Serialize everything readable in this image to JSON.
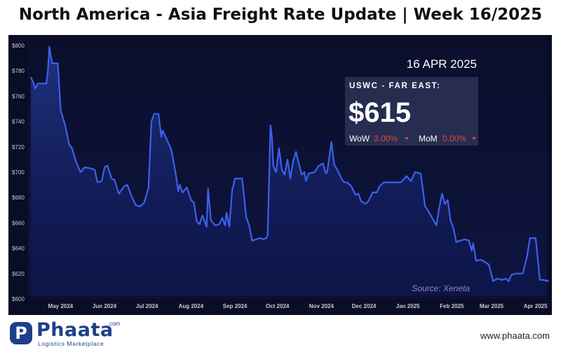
{
  "header": {
    "title": "North America - Asia Freight Rate Update | Week 16/2025"
  },
  "callout": {
    "date": "16 APR 2025",
    "route": "USWC - FAR EAST:",
    "price": "$615",
    "wow_label": "WoW",
    "wow_value": "3.00%",
    "mom_label": "MoM",
    "mom_value": "0.00%"
  },
  "source": "Source: Xeneta",
  "footer": {
    "logo_letter": "P",
    "logo_name": "Phaata",
    "logo_com": ".com",
    "logo_tagline": "Logistics Marketplace",
    "website": "www.phaata.com"
  },
  "colors": {
    "background": "#0a0d26",
    "line": "#3a62e8",
    "negative": "#e04848"
  },
  "chart_data": {
    "type": "line",
    "title": "",
    "xlabel": "",
    "ylabel": "",
    "ylim": [
      600,
      800
    ],
    "y_ticks": [
      "$600",
      "$620",
      "$640",
      "$660",
      "$680",
      "$700",
      "$720",
      "$740",
      "$760",
      "$780",
      "$800"
    ],
    "y_tick_values": [
      600,
      620,
      640,
      660,
      680,
      700,
      720,
      740,
      760,
      780,
      800
    ],
    "x_ticks": [
      {
        "date": "2024-05-01",
        "label": "May 2024"
      },
      {
        "date": "2024-06-01",
        "label": "Jun 2024"
      },
      {
        "date": "2024-07-01",
        "label": "Jul 2024"
      },
      {
        "date": "2024-08-01",
        "label": "Aug 2024"
      },
      {
        "date": "2024-09-01",
        "label": "Sep 2024"
      },
      {
        "date": "2024-10-01",
        "label": "Oct 2024"
      },
      {
        "date": "2024-11-01",
        "label": "Nov 2024"
      },
      {
        "date": "2024-12-01",
        "label": "Dec 2024"
      },
      {
        "date": "2025-01-01",
        "label": "Jan 2025"
      },
      {
        "date": "2025-02-01",
        "label": "Feb 2025"
      },
      {
        "date": "2025-03-01",
        "label": "Mar 2025"
      },
      {
        "date": "2025-04-01",
        "label": "Apr 2025"
      }
    ],
    "xlim": [
      "2024-04-16",
      "2025-04-16"
    ],
    "grid": false,
    "series": [
      {
        "name": "",
        "points": [
          [
            "2024-04-16",
            775
          ],
          [
            "2024-04-18",
            770
          ],
          [
            "2024-04-19",
            766
          ],
          [
            "2024-04-21",
            770
          ],
          [
            "2024-04-24",
            770
          ],
          [
            "2024-04-27",
            770
          ],
          [
            "2024-04-28",
            780
          ],
          [
            "2024-04-29",
            799
          ],
          [
            "2024-05-01",
            786
          ],
          [
            "2024-05-05",
            786
          ],
          [
            "2024-05-07",
            749
          ],
          [
            "2024-05-10",
            738
          ],
          [
            "2024-05-13",
            722
          ],
          [
            "2024-05-15",
            719
          ],
          [
            "2024-05-18",
            708
          ],
          [
            "2024-05-21",
            700
          ],
          [
            "2024-05-24",
            704
          ],
          [
            "2024-05-28",
            703
          ],
          [
            "2024-05-31",
            702
          ],
          [
            "2024-06-02",
            692
          ],
          [
            "2024-06-05",
            693
          ],
          [
            "2024-06-07",
            704
          ],
          [
            "2024-06-09",
            705
          ],
          [
            "2024-06-12",
            695
          ],
          [
            "2024-06-14",
            694
          ],
          [
            "2024-06-17",
            683
          ],
          [
            "2024-06-19",
            686
          ],
          [
            "2024-06-21",
            689
          ],
          [
            "2024-06-23",
            690
          ],
          [
            "2024-06-26",
            681
          ],
          [
            "2024-06-29",
            674
          ],
          [
            "2024-07-02",
            673
          ],
          [
            "2024-07-05",
            676
          ],
          [
            "2024-07-08",
            688
          ],
          [
            "2024-07-10",
            740
          ],
          [
            "2024-07-12",
            746
          ],
          [
            "2024-07-15",
            746
          ],
          [
            "2024-07-17",
            728
          ],
          [
            "2024-07-18",
            733
          ],
          [
            "2024-07-20",
            728
          ],
          [
            "2024-07-22",
            723
          ],
          [
            "2024-07-24",
            718
          ],
          [
            "2024-07-27",
            700
          ],
          [
            "2024-07-29",
            685
          ],
          [
            "2024-07-30",
            690
          ],
          [
            "2024-08-01",
            684
          ],
          [
            "2024-08-04",
            688
          ],
          [
            "2024-08-07",
            678
          ],
          [
            "2024-08-09",
            676
          ],
          [
            "2024-08-11",
            661
          ],
          [
            "2024-08-13",
            659
          ],
          [
            "2024-08-15",
            666
          ],
          [
            "2024-08-18",
            657
          ],
          [
            "2024-08-19",
            687
          ],
          [
            "2024-08-21",
            662
          ],
          [
            "2024-08-24",
            658
          ],
          [
            "2024-08-27",
            659
          ],
          [
            "2024-08-29",
            664
          ],
          [
            "2024-08-31",
            658
          ],
          [
            "2024-09-01",
            668
          ],
          [
            "2024-09-03",
            657
          ],
          [
            "2024-09-05",
            686
          ],
          [
            "2024-09-07",
            695
          ],
          [
            "2024-09-12",
            695
          ],
          [
            "2024-09-15",
            664
          ],
          [
            "2024-09-17",
            658
          ],
          [
            "2024-09-19",
            646
          ],
          [
            "2024-09-22",
            647
          ],
          [
            "2024-09-25",
            648
          ],
          [
            "2024-09-27",
            647
          ],
          [
            "2024-09-29",
            648
          ],
          [
            "2024-09-30",
            650
          ],
          [
            "2024-10-02",
            737
          ],
          [
            "2024-10-03",
            728
          ],
          [
            "2024-10-04",
            705
          ],
          [
            "2024-10-06",
            700
          ],
          [
            "2024-10-08",
            719
          ],
          [
            "2024-10-10",
            702
          ],
          [
            "2024-10-12",
            698
          ],
          [
            "2024-10-14",
            710
          ],
          [
            "2024-10-16",
            695
          ],
          [
            "2024-10-18",
            709
          ],
          [
            "2024-10-20",
            716
          ],
          [
            "2024-10-22",
            707
          ],
          [
            "2024-10-24",
            698
          ],
          [
            "2024-10-26",
            700
          ],
          [
            "2024-10-27",
            693
          ],
          [
            "2024-10-29",
            699
          ],
          [
            "2024-11-02",
            700
          ],
          [
            "2024-11-05",
            705
          ],
          [
            "2024-11-08",
            707
          ],
          [
            "2024-11-10",
            699
          ],
          [
            "2024-11-11",
            700
          ],
          [
            "2024-11-13",
            716
          ],
          [
            "2024-11-14",
            724
          ],
          [
            "2024-11-16",
            706
          ],
          [
            "2024-11-19",
            700
          ],
          [
            "2024-11-21",
            695
          ],
          [
            "2024-11-23",
            692
          ],
          [
            "2024-11-25",
            692
          ],
          [
            "2024-11-28",
            689
          ],
          [
            "2024-12-01",
            682
          ],
          [
            "2024-12-03",
            683
          ],
          [
            "2024-12-05",
            677
          ],
          [
            "2024-12-08",
            675
          ],
          [
            "2024-12-10",
            677
          ],
          [
            "2024-12-13",
            684
          ],
          [
            "2024-12-16",
            684
          ],
          [
            "2024-12-18",
            689
          ],
          [
            "2024-12-21",
            692
          ],
          [
            "2024-12-26",
            692
          ],
          [
            "2025-01-02",
            692
          ],
          [
            "2025-01-06",
            697
          ],
          [
            "2025-01-09",
            693
          ],
          [
            "2025-01-12",
            700
          ],
          [
            "2025-01-16",
            699
          ],
          [
            "2025-01-19",
            673
          ],
          [
            "2025-01-21",
            670
          ],
          [
            "2025-01-24",
            664
          ],
          [
            "2025-01-27",
            658
          ],
          [
            "2025-01-29",
            672
          ],
          [
            "2025-01-31",
            683
          ],
          [
            "2025-02-02",
            675
          ],
          [
            "2025-02-04",
            678
          ],
          [
            "2025-02-06",
            662
          ],
          [
            "2025-02-08",
            656
          ],
          [
            "2025-02-10",
            645
          ],
          [
            "2025-02-13",
            646
          ],
          [
            "2025-02-16",
            647
          ],
          [
            "2025-02-19",
            646
          ],
          [
            "2025-02-21",
            638
          ],
          [
            "2025-02-22",
            644
          ],
          [
            "2025-02-24",
            630
          ],
          [
            "2025-02-27",
            631
          ],
          [
            "2025-03-01",
            630
          ],
          [
            "2025-03-05",
            627
          ],
          [
            "2025-03-08",
            614
          ],
          [
            "2025-03-11",
            616
          ],
          [
            "2025-03-14",
            615
          ],
          [
            "2025-03-17",
            616
          ],
          [
            "2025-03-19",
            614
          ],
          [
            "2025-03-21",
            619
          ],
          [
            "2025-03-24",
            620
          ],
          [
            "2025-03-26",
            620
          ],
          [
            "2025-03-29",
            620
          ],
          [
            "2025-04-01",
            634
          ],
          [
            "2025-04-03",
            648
          ],
          [
            "2025-04-07",
            648
          ],
          [
            "2025-04-10",
            615
          ],
          [
            "2025-04-13",
            615
          ],
          [
            "2025-04-15",
            614
          ],
          [
            "2025-04-16",
            615
          ]
        ]
      }
    ]
  }
}
